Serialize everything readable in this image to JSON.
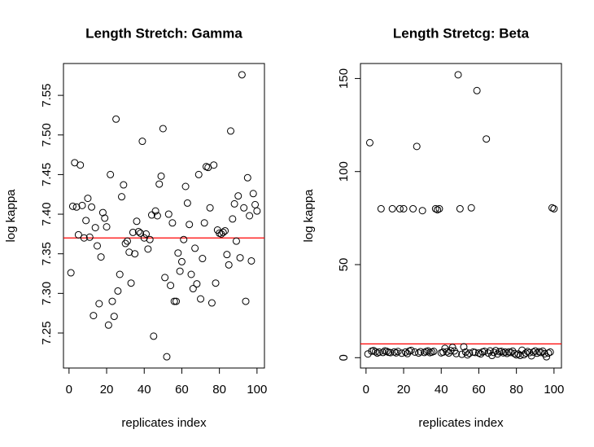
{
  "chart_data": [
    {
      "type": "scatter",
      "title": "Length Stretch: Gamma",
      "x_label": "replicates index",
      "y_label": "log kappa",
      "x": [
        1,
        2,
        3,
        4,
        5,
        6,
        7,
        8,
        9,
        10,
        11,
        12,
        13,
        14,
        15,
        16,
        17,
        18,
        19,
        20,
        21,
        22,
        23,
        24,
        25,
        26,
        27,
        28,
        29,
        30,
        31,
        32,
        33,
        34,
        35,
        36,
        37,
        38,
        39,
        40,
        41,
        42,
        43,
        44,
        45,
        46,
        47,
        48,
        49,
        50,
        51,
        52,
        53,
        54,
        55,
        56,
        57,
        58,
        59,
        60,
        61,
        62,
        63,
        64,
        65,
        66,
        67,
        68,
        69,
        70,
        71,
        72,
        73,
        74,
        75,
        76,
        77,
        78,
        79,
        80,
        81,
        82,
        83,
        84,
        85,
        86,
        87,
        88,
        89,
        90,
        91,
        92,
        93,
        94,
        95,
        96,
        97,
        98,
        99,
        100
      ],
      "values": [
        7.326,
        7.41,
        7.465,
        7.409,
        7.374,
        7.462,
        7.411,
        7.37,
        7.392,
        7.42,
        7.371,
        7.409,
        7.272,
        7.383,
        7.36,
        7.287,
        7.346,
        7.402,
        7.395,
        7.384,
        7.26,
        7.45,
        7.29,
        7.271,
        7.52,
        7.303,
        7.324,
        7.422,
        7.437,
        7.363,
        7.366,
        7.352,
        7.313,
        7.377,
        7.35,
        7.391,
        7.378,
        7.376,
        7.492,
        7.37,
        7.375,
        7.356,
        7.368,
        7.399,
        7.246,
        7.404,
        7.398,
        7.438,
        7.448,
        7.508,
        7.32,
        7.22,
        7.4,
        7.31,
        7.389,
        7.29,
        7.29,
        7.351,
        7.328,
        7.34,
        7.368,
        7.435,
        7.414,
        7.387,
        7.324,
        7.306,
        7.357,
        7.312,
        7.45,
        7.293,
        7.344,
        7.389,
        7.46,
        7.459,
        7.408,
        7.288,
        7.462,
        7.313,
        7.38,
        7.376,
        7.375,
        7.377,
        7.379,
        7.349,
        7.336,
        7.505,
        7.394,
        7.413,
        7.366,
        7.423,
        7.345,
        7.576,
        7.408,
        7.29,
        7.446,
        7.398,
        7.341,
        7.426,
        7.412,
        7.404
      ],
      "color": "#000000",
      "xlim": [
        -2.96,
        103.96
      ],
      "xticks": [
        0,
        20,
        40,
        60,
        80,
        100
      ],
      "ylim": [
        7.2058,
        7.5902
      ],
      "yticks": [
        7.25,
        {
          "value": 7.3,
          "label": "7.30"
        },
        7.35,
        {
          "value": 7.4,
          "label": "7.40"
        },
        7.45,
        {
          "value": 7.5,
          "label": "7.50"
        },
        7.55
      ],
      "reference_line": {
        "value": 7.37,
        "color": "#ff0000"
      }
    },
    {
      "type": "scatter",
      "title": "Length Stretcg: Beta",
      "x_label": "replicates index",
      "y_label": "log kappa",
      "x": [
        1,
        2,
        3,
        4,
        5,
        6,
        7,
        8,
        9,
        10,
        11,
        12,
        13,
        14,
        15,
        16,
        17,
        18,
        19,
        20,
        21,
        22,
        23,
        24,
        25,
        26,
        27,
        28,
        29,
        30,
        31,
        32,
        33,
        34,
        35,
        36,
        37,
        38,
        39,
        40,
        41,
        42,
        43,
        44,
        45,
        46,
        47,
        48,
        49,
        50,
        51,
        52,
        53,
        54,
        55,
        56,
        57,
        58,
        59,
        60,
        61,
        62,
        63,
        64,
        65,
        66,
        67,
        68,
        69,
        70,
        71,
        72,
        73,
        74,
        75,
        76,
        77,
        78,
        79,
        80,
        81,
        82,
        83,
        84,
        85,
        86,
        87,
        88,
        89,
        90,
        91,
        92,
        93,
        94,
        95,
        96,
        97,
        98,
        99,
        100
      ],
      "values": [
        2.0,
        115.5,
        3.5,
        3.8,
        3.2,
        2.5,
        3.0,
        80.0,
        2.8,
        3.6,
        3.4,
        2.9,
        2.7,
        80.0,
        3.1,
        2.6,
        3.3,
        80.0,
        2.4,
        80.0,
        3.0,
        2.2,
        3.5,
        3.9,
        80.0,
        3.0,
        113.5,
        2.5,
        3.2,
        79.0,
        2.8,
        3.3,
        3.6,
        2.7,
        3.0,
        3.4,
        80.0,
        79.5,
        80.0,
        2.6,
        3.0,
        5.0,
        3.2,
        2.5,
        3.8,
        5.5,
        3.6,
        2.2,
        152.0,
        80.0,
        1.8,
        5.8,
        3.0,
        1.5,
        2.4,
        80.5,
        3.0,
        2.8,
        143.5,
        2.5,
        2.0,
        3.1,
        3.4,
        117.5,
        2.5,
        3.6,
        1.2,
        2.8,
        3.8,
        2.0,
        3.2,
        3.4,
        2.6,
        3.0,
        2.3,
        3.1,
        2.8,
        3.5,
        2.2,
        1.5,
        2.0,
        1.2,
        4.0,
        1.6,
        2.5,
        3.3,
        2.7,
        1.0,
        3.0,
        3.6,
        2.4,
        3.2,
        2.8,
        3.5,
        2.1,
        0.5,
        2.5,
        3.0,
        80.5,
        80.0
      ],
      "color": "#000000",
      "xlim": [
        -2.96,
        103.96
      ],
      "xticks": [
        0,
        20,
        40,
        60,
        80,
        100
      ],
      "ylim": [
        -5.56,
        158.06
      ],
      "yticks": [
        0,
        50,
        100,
        150
      ],
      "reference_line": {
        "value": 7.4,
        "color": "#ff0000"
      }
    }
  ]
}
